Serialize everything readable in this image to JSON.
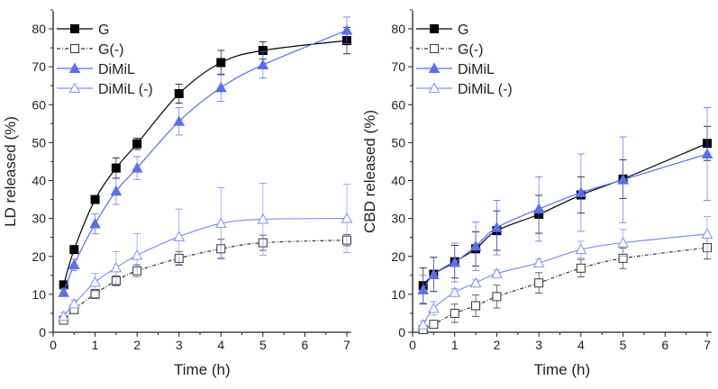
{
  "chart_data": [
    {
      "type": "line",
      "ylabel": "LD released (%)",
      "xlabel": "Time (h)",
      "xlim": [
        0,
        7.1
      ],
      "ylim": [
        0,
        85
      ],
      "xticks": [
        0,
        1,
        2,
        3,
        4,
        5,
        6,
        7
      ],
      "yticks": [
        0,
        10,
        20,
        30,
        40,
        50,
        60,
        70,
        80
      ],
      "legend": "top-left",
      "grid": false,
      "x": [
        0.25,
        0.5,
        1,
        1.5,
        2,
        3,
        4,
        5,
        7
      ],
      "series": [
        {
          "name": "G",
          "color": "#000000",
          "marker": "square-filled",
          "dash": "solid",
          "values": [
            12.5,
            21.8,
            35,
            43.3,
            49.7,
            62.9,
            71.1,
            74.3,
            76.9
          ],
          "errors": [
            1,
            1,
            1,
            2.7,
            1.5,
            2.5,
            3.2,
            2.3,
            3.5
          ]
        },
        {
          "name": "G(-)",
          "color": "#333333",
          "marker": "square-open",
          "dash": "dashdot",
          "values": [
            3.2,
            6,
            10.1,
            13.6,
            16.2,
            19.5,
            22,
            23.6,
            24.3
          ],
          "errors": [
            1,
            1,
            1.2,
            1.3,
            1.6,
            1.8,
            2.5,
            2,
            1.5
          ]
        },
        {
          "name": "DiMiL",
          "color": "#5a6ef0",
          "marker": "triangle-filled",
          "dash": "solid",
          "values": [
            10.5,
            17.8,
            28.6,
            37.2,
            43.3,
            55.6,
            64.5,
            70.5,
            79.6
          ],
          "errors": [
            1,
            1.5,
            2.6,
            3.5,
            3,
            3.6,
            3.6,
            3.5,
            3.5
          ]
        },
        {
          "name": "DiMiL (-)",
          "color": "#8090f0",
          "marker": "triangle-open",
          "dash": "solid",
          "values": [
            4.2,
            7.5,
            13.2,
            17,
            20.3,
            25.2,
            28.7,
            29.8,
            30
          ],
          "errors": [
            1,
            1,
            2.3,
            4.3,
            5.7,
            7.3,
            9.4,
            9.5,
            9
          ]
        }
      ]
    },
    {
      "type": "line",
      "ylabel": "CBD released (%)",
      "xlabel": "Time (h)",
      "xlim": [
        0,
        7.1
      ],
      "ylim": [
        0,
        85
      ],
      "xticks": [
        0,
        1,
        2,
        3,
        4,
        5,
        6,
        7
      ],
      "yticks": [
        0,
        10,
        20,
        30,
        40,
        50,
        60,
        70,
        80
      ],
      "legend": "top-left",
      "grid": false,
      "x": [
        0.25,
        0.5,
        1,
        1.5,
        2,
        3,
        4,
        5,
        7
      ],
      "series": [
        {
          "name": "G",
          "color": "#000000",
          "marker": "square-filled",
          "dash": "solid",
          "values": [
            12.3,
            15.3,
            18.6,
            22,
            26.8,
            31.1,
            36.2,
            40.4,
            49.8
          ],
          "errors": [
            4.7,
            4.5,
            4.3,
            4.5,
            5.2,
            5,
            4.8,
            5.1,
            4.5
          ]
        },
        {
          "name": "G(-)",
          "color": "#333333",
          "marker": "square-open",
          "dash": "dashdot",
          "values": [
            0.7,
            2.1,
            5,
            7,
            9.4,
            13,
            16.9,
            19.5,
            22.3
          ],
          "errors": [
            0.5,
            0.5,
            2.4,
            2.8,
            3,
            2.7,
            2.3,
            2.7,
            3
          ]
        },
        {
          "name": "DiMiL",
          "color": "#5a6ef0",
          "marker": "triangle-filled",
          "dash": "solid",
          "values": [
            11.2,
            15.2,
            18.4,
            22.7,
            27.6,
            32.5,
            36.8,
            40.2,
            47
          ],
          "errors": [
            3.8,
            4.5,
            5.1,
            6.4,
            7.2,
            8.5,
            10.2,
            11.3,
            12.2
          ]
        },
        {
          "name": "DiMiL (-)",
          "color": "#8090f0",
          "marker": "triangle-open",
          "dash": "solid",
          "values": [
            2,
            6.3,
            10.5,
            13,
            15.5,
            18.3,
            21.8,
            23.6,
            25.9
          ],
          "errors": [
            1,
            1.8,
            1,
            0.8,
            0.9,
            1,
            2.2,
            3.5,
            4.6
          ]
        }
      ]
    }
  ]
}
